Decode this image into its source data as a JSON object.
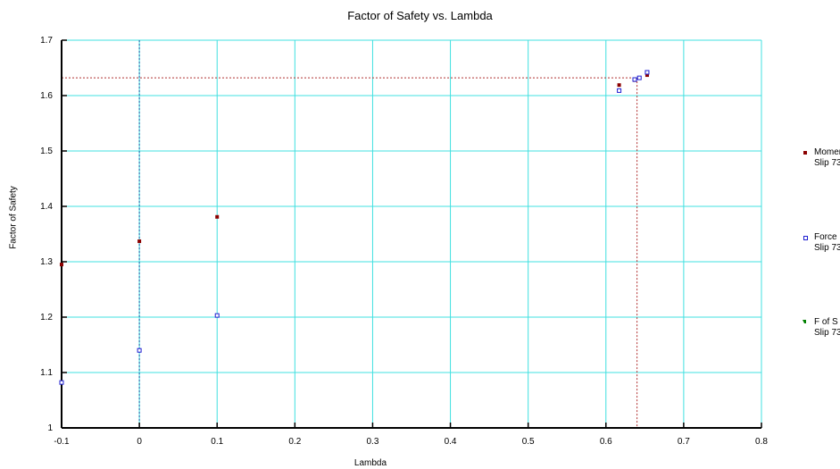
{
  "chart_data": {
    "type": "scatter",
    "title": "Factor of Safety vs. Lambda",
    "xlabel": "Lambda",
    "ylabel": "Factor of Safety",
    "xlim": [
      -0.1,
      0.8
    ],
    "ylim": [
      1.0,
      1.7
    ],
    "x_ticks": [
      "-0.1",
      "0",
      "0.1",
      "0.2",
      "0.3",
      "0.4",
      "0.5",
      "0.6",
      "0.7",
      "0.8"
    ],
    "y_ticks": [
      "1",
      "1.1",
      "1.2",
      "1.3",
      "1.4",
      "1.5",
      "1.6",
      "1.7"
    ],
    "grid": true,
    "legend_placement": "right",
    "series": [
      {
        "name": "Momer",
        "name2": "Slip 73",
        "marker": "filled-square",
        "color": "#8b0000",
        "points": [
          [
            -0.1,
            1.295
          ],
          [
            0.0,
            1.337
          ],
          [
            0.1,
            1.381
          ],
          [
            0.617,
            1.619
          ],
          [
            0.637,
            1.628
          ],
          [
            0.643,
            1.632
          ],
          [
            0.653,
            1.637
          ]
        ]
      },
      {
        "name": "Force",
        "name2": "Slip 73",
        "marker": "open-square",
        "color": "#1f1fd0",
        "points": [
          [
            -0.1,
            1.082
          ],
          [
            0.0,
            1.14
          ],
          [
            0.1,
            1.203
          ],
          [
            0.617,
            1.609
          ],
          [
            0.637,
            1.629
          ],
          [
            0.643,
            1.632
          ],
          [
            0.653,
            1.642
          ]
        ]
      },
      {
        "name": "F of S",
        "name2": "Slip 73",
        "marker": "filled-triangle",
        "color": "#008000",
        "points": []
      }
    ],
    "annotations": {
      "critical_lambda": 0.64,
      "critical_fs": 1.632,
      "zero_lambda_line": 0.0
    },
    "colors": {
      "grid": "#40e0e0",
      "axis": "#000000",
      "zero_line": "#1e5aa8",
      "crossover_line": "#b03030"
    }
  }
}
